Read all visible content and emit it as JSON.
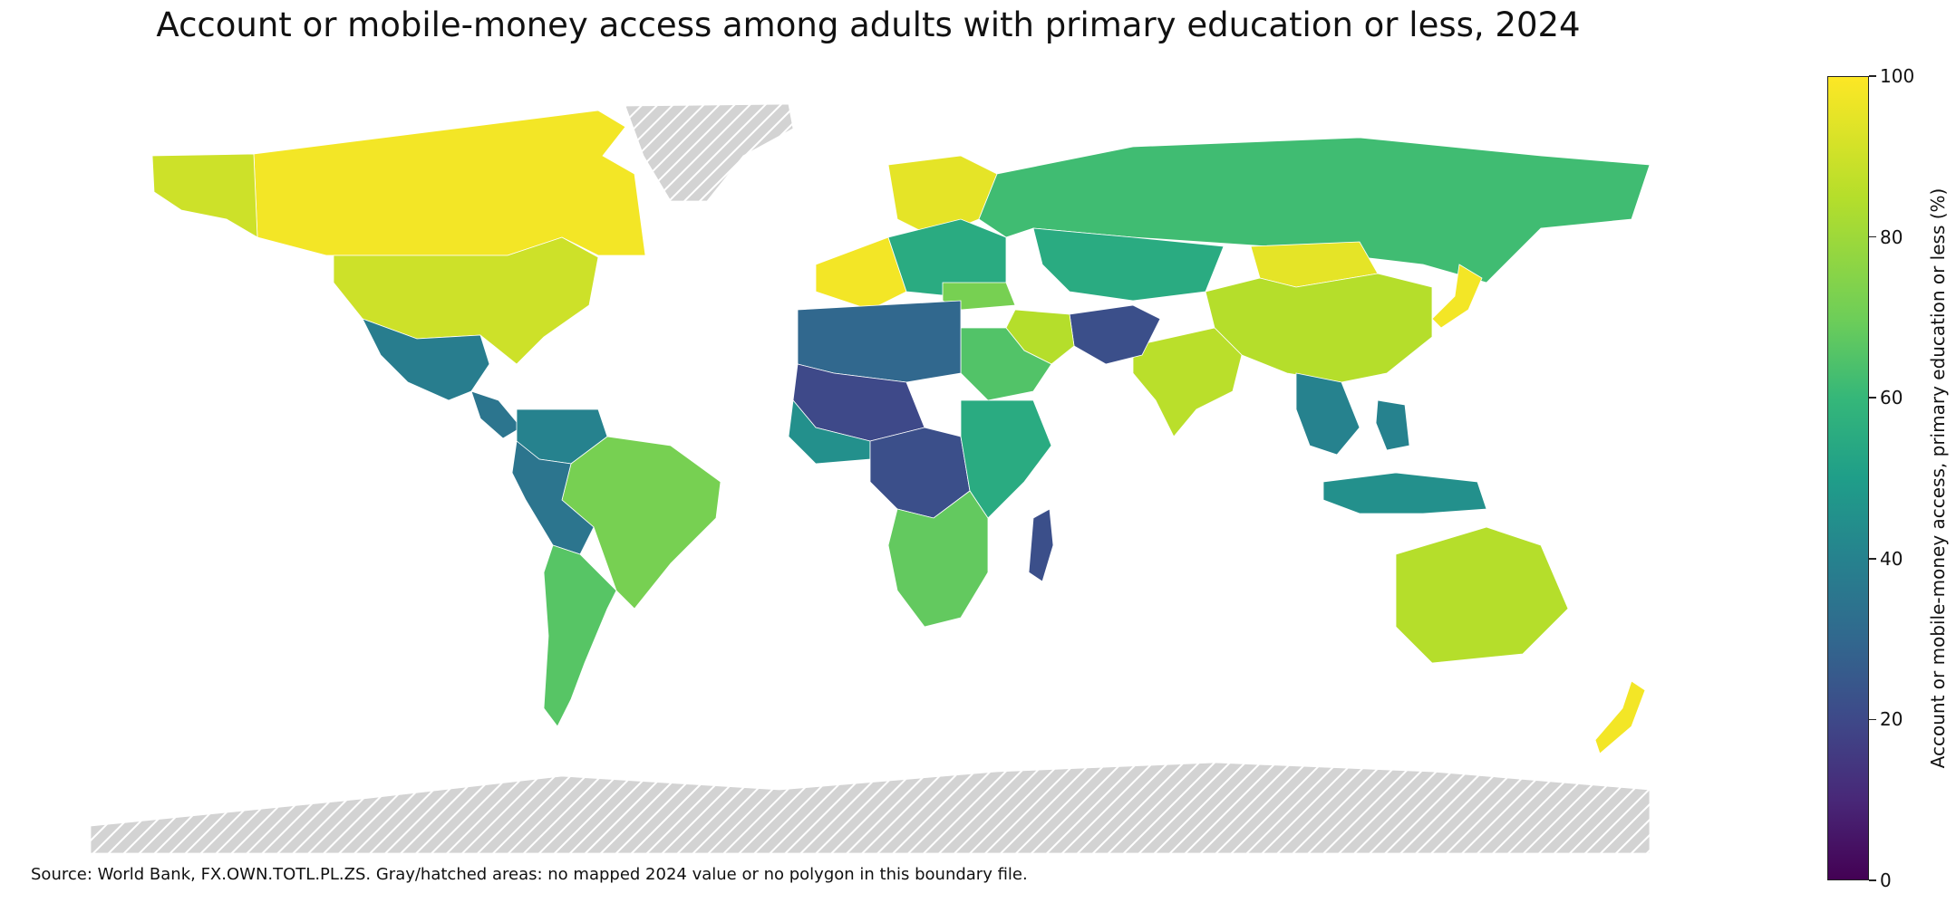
{
  "title": "Account or mobile-money access among adults with primary education or less, 2024",
  "source": "Source: World Bank, FX.OWN.TOTL.PL.ZS. Gray/hatched areas: no mapped 2024 value or no polygon in this boundary file.",
  "colorbar": {
    "label": "Account or mobile-money access, primary education or less (%)",
    "ticks": [
      "0",
      "20",
      "40",
      "60",
      "80",
      "100"
    ],
    "range": [
      0,
      100
    ],
    "colormap": "viridis"
  },
  "map": {
    "no_data_color": "#d3d3d3",
    "regions": [
      {
        "name": "Canada",
        "value": 98
      },
      {
        "name": "United States",
        "value": 90
      },
      {
        "name": "Alaska",
        "value": 90
      },
      {
        "name": "Greenland",
        "value": null
      },
      {
        "name": "Mexico",
        "value": 38
      },
      {
        "name": "Central America",
        "value": 35
      },
      {
        "name": "Colombia-Venezuela",
        "value": 40
      },
      {
        "name": "Brazil",
        "value": 72
      },
      {
        "name": "Peru-Bolivia",
        "value": 35
      },
      {
        "name": "Argentina-Chile",
        "value": 66
      },
      {
        "name": "Western Europe",
        "value": 98
      },
      {
        "name": "Scandinavia",
        "value": 95
      },
      {
        "name": "Eastern Europe",
        "value": 55
      },
      {
        "name": "Russia",
        "value": 62
      },
      {
        "name": "Kazakhstan-Central Asia",
        "value": 55
      },
      {
        "name": "Mongolia",
        "value": 95
      },
      {
        "name": "China",
        "value": 85
      },
      {
        "name": "Japan",
        "value": 98
      },
      {
        "name": "India",
        "value": 86
      },
      {
        "name": "Pakistan-Afghanistan",
        "value": 22
      },
      {
        "name": "Iran",
        "value": 85
      },
      {
        "name": "Saudi Arabia",
        "value": 65
      },
      {
        "name": "Turkey",
        "value": 72
      },
      {
        "name": "North Africa",
        "value": 30
      },
      {
        "name": "Sahel",
        "value": 20
      },
      {
        "name": "West Africa",
        "value": 45
      },
      {
        "name": "Central Africa",
        "value": 22
      },
      {
        "name": "East Africa",
        "value": 55
      },
      {
        "name": "Southern Africa",
        "value": 68
      },
      {
        "name": "Madagascar",
        "value": 22
      },
      {
        "name": "Southeast Asia",
        "value": 40
      },
      {
        "name": "Indonesia",
        "value": 45
      },
      {
        "name": "Philippines",
        "value": 40
      },
      {
        "name": "Australia",
        "value": 85
      },
      {
        "name": "New Zealand",
        "value": 98
      },
      {
        "name": "Antarctica",
        "value": null
      }
    ]
  }
}
